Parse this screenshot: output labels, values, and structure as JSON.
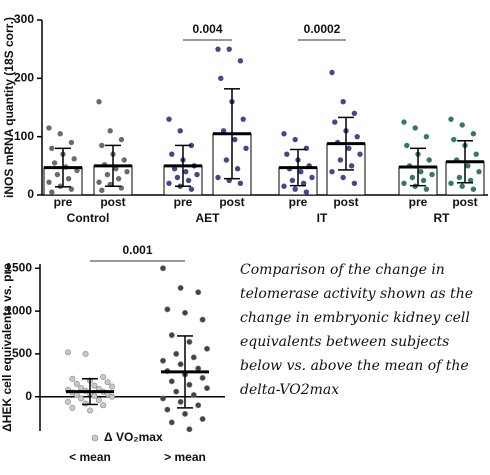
{
  "chart_data": [
    {
      "type": "bar",
      "y_label": "iNOS mRNA quantity (18S corr.)",
      "categories": [
        "pre",
        "post",
        "pre",
        "post",
        "pre",
        "post",
        "pre",
        "post"
      ],
      "groups": [
        "Control",
        "AET",
        "IT",
        "RT"
      ],
      "colors": [
        "#6b6b6b",
        "#6b6b6b",
        "#3d4b8c",
        "#3d4b8c",
        "#3d4b8c",
        "#3d4b8c",
        "#2f7d5c",
        "#2f7d5c"
      ],
      "values": [
        47,
        50,
        50,
        105,
        47,
        88,
        48,
        57
      ],
      "errors": [
        33,
        35,
        35,
        77,
        31,
        45,
        32,
        36
      ],
      "points": [
        [
          115,
          105,
          90,
          80,
          70,
          62,
          55,
          48,
          42,
          35,
          28,
          22,
          15,
          10,
          5
        ],
        [
          160,
          110,
          95,
          85,
          70,
          60,
          52,
          45,
          40,
          35,
          28,
          22,
          18,
          12,
          8
        ],
        [
          130,
          110,
          85,
          70,
          60,
          50,
          45,
          40,
          35,
          30,
          25,
          20,
          15,
          10
        ],
        [
          250,
          250,
          230,
          200,
          160,
          130,
          110,
          95,
          80,
          60,
          45,
          30,
          25,
          20
        ],
        [
          105,
          95,
          80,
          70,
          60,
          50,
          45,
          40,
          30,
          25,
          20,
          15,
          10,
          5
        ],
        [
          210,
          160,
          140,
          125,
          110,
          100,
          90,
          80,
          70,
          60,
          50,
          40,
          30,
          20
        ],
        [
          125,
          115,
          100,
          85,
          70,
          60,
          50,
          40,
          35,
          30,
          25,
          20,
          15,
          10
        ],
        [
          130,
          120,
          105,
          95,
          85,
          70,
          60,
          50,
          40,
          30,
          25,
          20,
          15,
          10
        ]
      ],
      "annotations": [
        {
          "label": "0.004",
          "between": [
            2,
            3
          ]
        },
        {
          "label": "0.0002",
          "between": [
            4,
            5
          ]
        }
      ],
      "ylim": [
        0,
        300
      ],
      "yticks": [
        0,
        100,
        200,
        300
      ]
    },
    {
      "type": "dotplot",
      "y_label": "ΔHEK cell equivalents vs. pre",
      "categories": [
        "< mean",
        "> mean"
      ],
      "colors": [
        "#c8c8c8",
        "#444444"
      ],
      "legend": "Δ VO₂max",
      "values": [
        60,
        290
      ],
      "errors": [
        150,
        420
      ],
      "points": [
        [
          520,
          500,
          230,
          210,
          190,
          170,
          150,
          130,
          120,
          100,
          90,
          80,
          70,
          60,
          50,
          40,
          30,
          20,
          10,
          0,
          -20,
          -40,
          -60,
          -80,
          -100,
          -130,
          -160
        ],
        [
          1500,
          1270,
          1220,
          1020,
          980,
          900,
          720,
          640,
          560,
          500,
          460,
          420,
          380,
          330,
          300,
          260,
          220,
          180,
          140,
          100,
          60,
          20,
          -20,
          -60,
          -100,
          -150,
          -200,
          -260,
          -300,
          -380
        ]
      ],
      "annotations": [
        {
          "label": "0.001",
          "between": [
            0,
            1
          ]
        }
      ],
      "ylim": [
        -400,
        1550
      ],
      "yticks": [
        0,
        500,
        1000,
        1500
      ]
    }
  ],
  "caption": "Comparison of the change in telomerase activity shown as the change in embryonic kidney cell equivalents between subjects below vs. above the mean of the delta-VO2max"
}
